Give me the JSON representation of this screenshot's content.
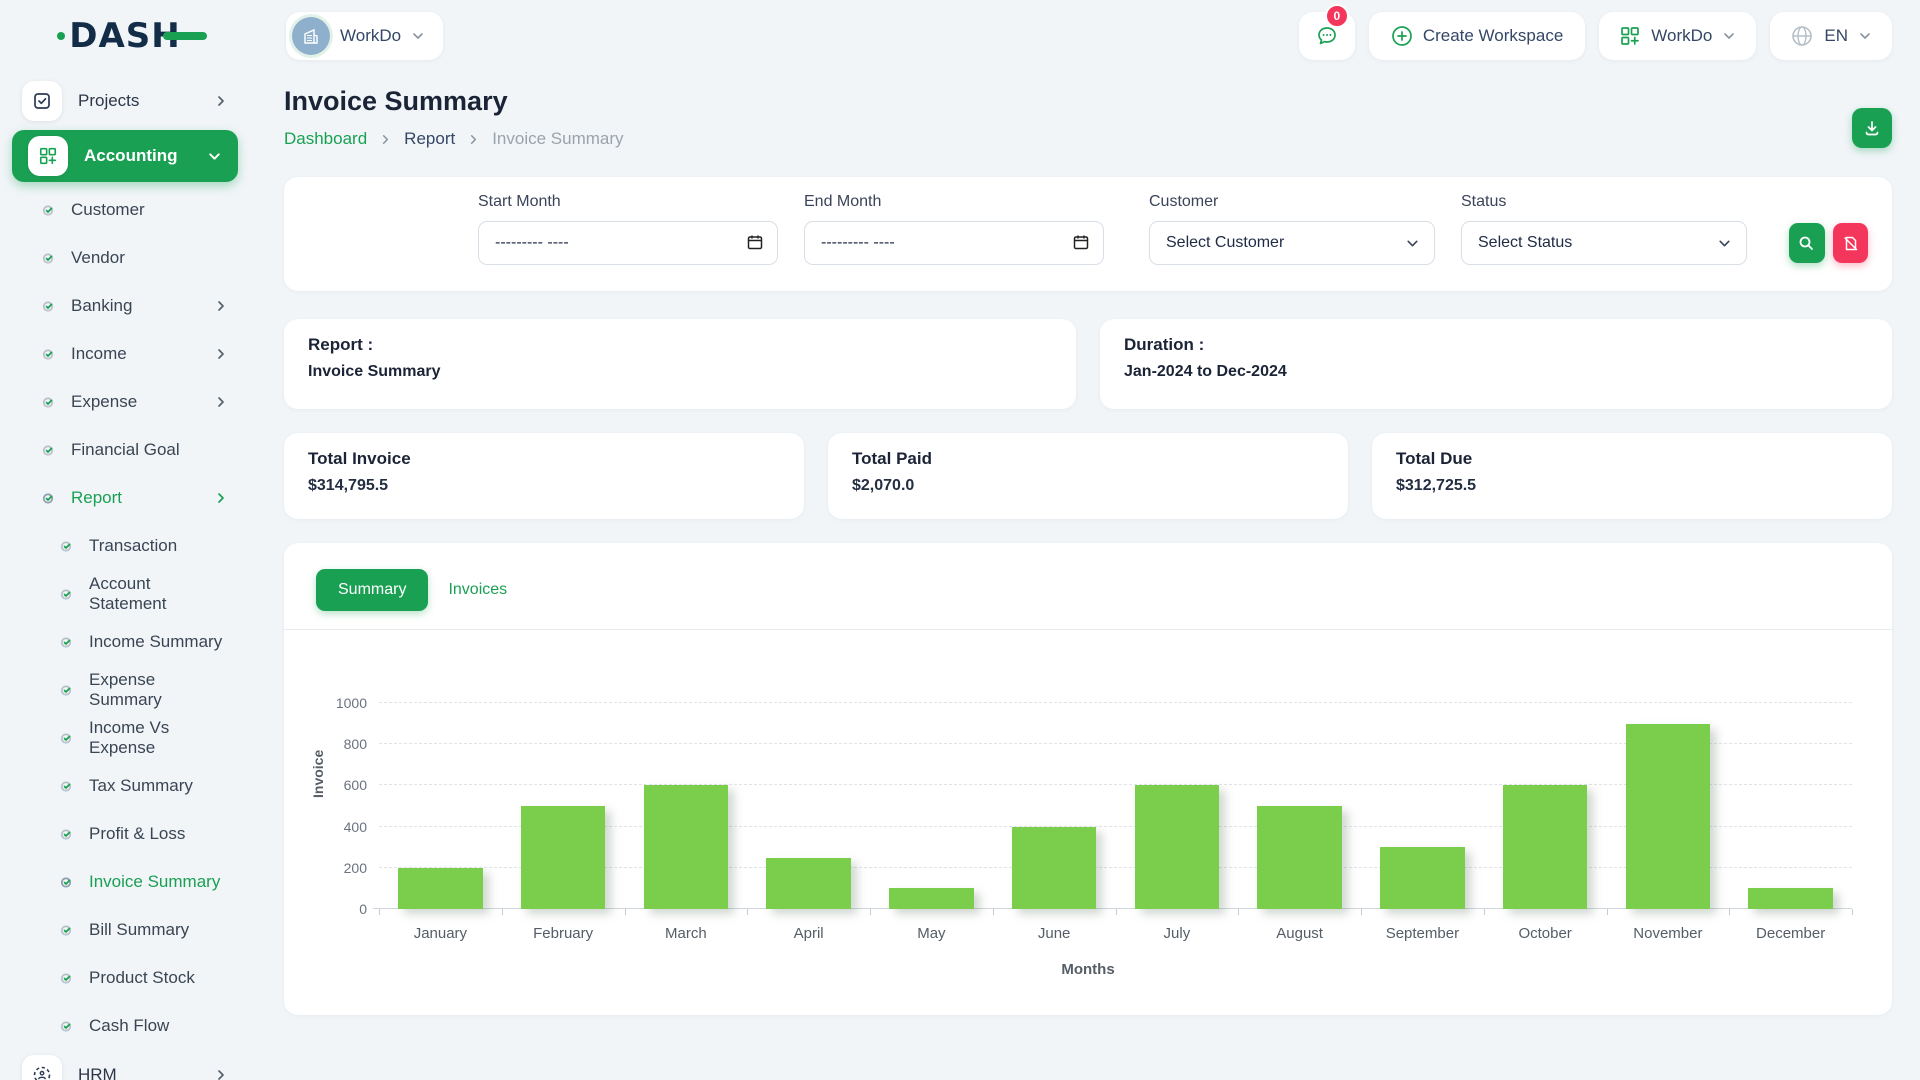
{
  "brand": {
    "logo_text": "DASH"
  },
  "header": {
    "workspace": {
      "name": "WorkDo"
    },
    "messages": {
      "badge": "0"
    },
    "create_workspace": {
      "label": "Create Workspace"
    },
    "app_switcher": {
      "label": "WorkDo"
    },
    "language": {
      "code": "EN"
    }
  },
  "sidebar": {
    "projects": {
      "label": "Projects"
    },
    "accounting": {
      "label": "Accounting"
    },
    "accounting_children": [
      {
        "label": "Customer",
        "chevron": false,
        "active": false
      },
      {
        "label": "Vendor",
        "chevron": false,
        "active": false
      },
      {
        "label": "Banking",
        "chevron": true,
        "active": false
      },
      {
        "label": "Income",
        "chevron": true,
        "active": false
      },
      {
        "label": "Expense",
        "chevron": true,
        "active": false
      },
      {
        "label": "Financial Goal",
        "chevron": false,
        "active": false
      },
      {
        "label": "Report",
        "chevron": true,
        "active": true
      }
    ],
    "report_children": [
      {
        "label": "Transaction",
        "active": false
      },
      {
        "label": "Account Statement",
        "active": false
      },
      {
        "label": "Income Summary",
        "active": false
      },
      {
        "label": "Expense Summary",
        "active": false
      },
      {
        "label": "Income Vs Expense",
        "active": false
      },
      {
        "label": "Tax Summary",
        "active": false
      },
      {
        "label": "Profit & Loss",
        "active": false
      },
      {
        "label": "Invoice Summary",
        "active": true
      },
      {
        "label": "Bill Summary",
        "active": false
      },
      {
        "label": "Product Stock",
        "active": false
      },
      {
        "label": "Cash Flow",
        "active": false
      }
    ],
    "hrm": {
      "label": "HRM"
    }
  },
  "page": {
    "title": "Invoice Summary",
    "breadcrumb": {
      "home": "Dashboard",
      "section": "Report",
      "current": "Invoice Summary"
    }
  },
  "filters": {
    "start_month_label": "Start Month",
    "start_month_value": "--------- ----",
    "end_month_label": "End Month",
    "end_month_value": "--------- ----",
    "customer_label": "Customer",
    "customer_value": "Select Customer",
    "status_label": "Status",
    "status_value": "Select Status"
  },
  "report_info": {
    "report_label": "Report :",
    "report_value": "Invoice Summary",
    "duration_label": "Duration :",
    "duration_value": "Jan-2024 to Dec-2024"
  },
  "stats": [
    {
      "label": "Total Invoice",
      "value": "$314,795.5"
    },
    {
      "label": "Total Paid",
      "value": "$2,070.0"
    },
    {
      "label": "Total Due",
      "value": "$312,725.5"
    }
  ],
  "tabs": {
    "summary": "Summary",
    "invoices": "Invoices"
  },
  "chart_data": {
    "type": "bar",
    "title": "",
    "categories": [
      "January",
      "February",
      "March",
      "April",
      "May",
      "June",
      "July",
      "August",
      "September",
      "October",
      "November",
      "December"
    ],
    "values": [
      200,
      500,
      600,
      250,
      100,
      400,
      600,
      500,
      300,
      600,
      900,
      100
    ],
    "xlabel": "Months",
    "ylabel": "Invoice",
    "ylim": [
      0,
      1000
    ],
    "yticks": [
      0,
      200,
      400,
      600,
      800,
      1000
    ],
    "grid": "dashed-horizontal",
    "legend": "none",
    "bar_color": "#7ACE4C"
  },
  "colors": {
    "accent_green": "#1aa053",
    "bar_green": "#7ACE4C",
    "pink": "#F5365C",
    "dark_text": "#1b2437"
  }
}
